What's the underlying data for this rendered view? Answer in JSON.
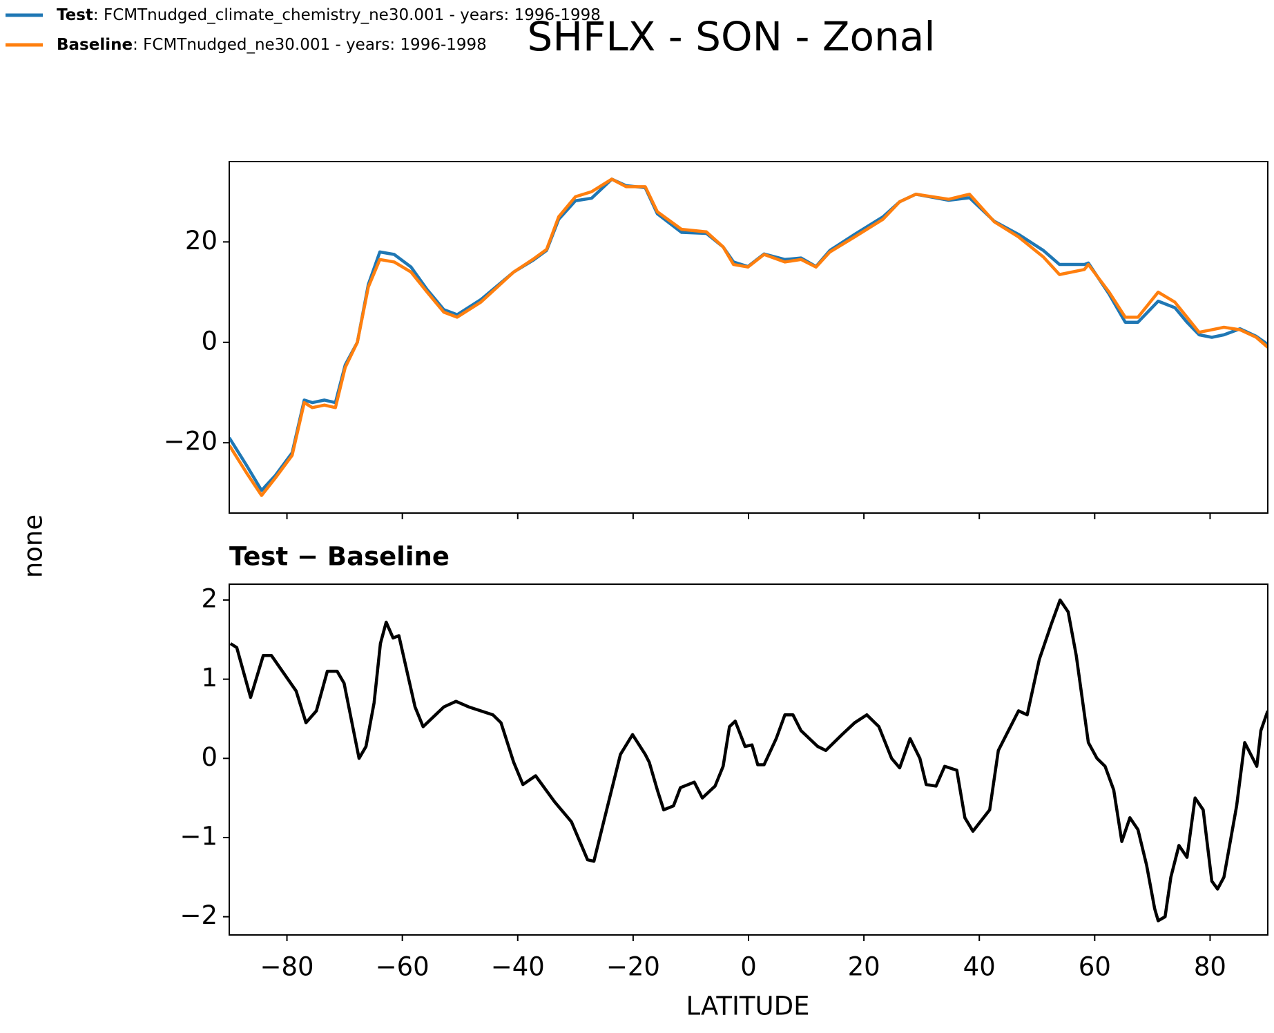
{
  "chart_data": [
    {
      "type": "line",
      "title": "SHFLX - SON - Zonal",
      "ylabel": "none",
      "x": [
        -90,
        -87,
        -84.4,
        -82,
        -79.1,
        -77,
        -75.6,
        -73.5,
        -71.6,
        -69.9,
        -67.8,
        -65.9,
        -63.9,
        -61.4,
        -58.5,
        -55.7,
        -52.8,
        -50.5,
        -46.4,
        -40.7,
        -37.4,
        -35,
        -32.9,
        -30,
        -27.2,
        -23.7,
        -21.2,
        -17.9,
        -15.8,
        -11.6,
        -7.3,
        -4.4,
        -2.6,
        -0.1,
        2.7,
        6.3,
        9.1,
        11.7,
        14.1,
        18.4,
        23.3,
        26.2,
        29,
        34.7,
        38.3,
        42.6,
        46.8,
        51.1,
        53.9,
        58.2,
        58.9,
        62.5,
        65.3,
        67.5,
        71,
        73.9,
        76,
        78.1,
        80.3,
        82.4,
        85.2,
        88,
        90
      ],
      "series": [
        {
          "name": "Test",
          "description": ": FCMTnudged_climate_chemistry_ne30.001 - years: 1996-1998",
          "color": "#1f77b4",
          "values": [
            -19,
            -24.5,
            -29.5,
            -26.5,
            -22,
            -11.5,
            -12,
            -11.5,
            -12,
            -4.5,
            0,
            11.5,
            18,
            17.5,
            15,
            10.5,
            6.5,
            5.5,
            8.5,
            14,
            16.3,
            18.3,
            24.5,
            28.2,
            28.7,
            32.5,
            31.2,
            30.8,
            25.6,
            21.9,
            21.7,
            19,
            16,
            15.1,
            17.6,
            16.5,
            16.8,
            15.1,
            18.3,
            21.5,
            25,
            28,
            29.5,
            28.3,
            28.8,
            24.1,
            21.5,
            18.3,
            15.5,
            15.5,
            15.8,
            9.6,
            4,
            4,
            8.2,
            6.9,
            4,
            1.5,
            1,
            1.5,
            2.7,
            1.2,
            -0.4
          ]
        },
        {
          "name": "Baseline",
          "description": ": FCMTnudged_ne30.001 - years: 1996-1998",
          "color": "#ff7f0e",
          "values": [
            -20.5,
            -26,
            -30.5,
            -27,
            -22.5,
            -12,
            -13,
            -12.5,
            -13,
            -5,
            0,
            11,
            16.5,
            16,
            14,
            10,
            6,
            5,
            8,
            14,
            16.5,
            18.5,
            25,
            29,
            30,
            32.5,
            31,
            31,
            26,
            22.5,
            22,
            19,
            15.5,
            15,
            17.5,
            16,
            16.5,
            15,
            18,
            21,
            24.5,
            28,
            29.5,
            28.5,
            29.5,
            24,
            21,
            17,
            13.5,
            14.5,
            15.5,
            10,
            5,
            5,
            10,
            8,
            5,
            2,
            2.5,
            3,
            2.5,
            1,
            -1
          ]
        }
      ],
      "xlim": [
        -90,
        90
      ],
      "xticks": [
        -80,
        -60,
        -40,
        -20,
        0,
        20,
        40,
        60,
        80
      ],
      "ylim": [
        -34,
        36
      ],
      "yticks": [
        {
          "value": -20,
          "label": "−20"
        },
        0,
        20
      ]
    },
    {
      "type": "line",
      "title": "Test − Baseline",
      "xlabel": "LATITUDE",
      "x": [
        -89.8,
        -88.7,
        -86.3,
        -84.1,
        -82.7,
        -78.4,
        -76.7,
        -74.9,
        -73,
        -71.3,
        -70.1,
        -67.5,
        -66.3,
        -64.9,
        -63.8,
        -62.8,
        -61.6,
        -60.6,
        -57.8,
        -56.4,
        -52.8,
        -50.7,
        -48.5,
        -46.4,
        -44.3,
        -42.9,
        -40.7,
        -39.1,
        -36.9,
        -33.6,
        -30.7,
        -27.9,
        -26.8,
        -25.1,
        -22.2,
        -20.1,
        -17.9,
        -17.2,
        -15.8,
        -14.7,
        -13,
        -11.8,
        -9.4,
        -8,
        -5.8,
        -4.4,
        -3.3,
        -2.3,
        -0.6,
        0.6,
        1.6,
        2.7,
        4.8,
        6.3,
        7.7,
        9.1,
        12,
        13.4,
        16.2,
        18.4,
        20.5,
        22.6,
        24.8,
        26.2,
        28,
        29.7,
        30.8,
        32.5,
        34,
        36.1,
        37.5,
        38.9,
        41.8,
        43.3,
        46.8,
        48.3,
        50.4,
        52.5,
        54,
        55.4,
        56.8,
        58.9,
        60.4,
        61.8,
        63.3,
        64.7,
        66.1,
        67.5,
        69,
        70.4,
        71,
        72.2,
        73.2,
        74.6,
        76,
        77.4,
        78.8,
        80.3,
        81.3,
        82.4,
        84.6,
        86,
        88.1,
        88.8,
        90
      ],
      "series": [
        {
          "color": "#000000",
          "values": [
            1.45,
            1.4,
            0.77,
            1.3,
            1.3,
            0.85,
            0.45,
            0.6,
            1.1,
            1.1,
            0.95,
            0,
            0.15,
            0.7,
            1.45,
            1.72,
            1.52,
            1.55,
            0.65,
            0.4,
            0.65,
            0.72,
            0.65,
            0.6,
            0.55,
            0.45,
            -0.05,
            -0.33,
            -0.22,
            -0.55,
            -0.8,
            -1.28,
            -1.3,
            -0.8,
            0.05,
            0.3,
            0.05,
            -0.05,
            -0.4,
            -0.65,
            -0.6,
            -0.37,
            -0.3,
            -0.5,
            -0.35,
            -0.1,
            0.4,
            0.47,
            0.15,
            0.17,
            -0.08,
            -0.08,
            0.25,
            0.55,
            0.55,
            0.35,
            0.15,
            0.1,
            0.3,
            0.45,
            0.55,
            0.4,
            0,
            -0.12,
            0.25,
            0,
            -0.33,
            -0.35,
            -0.1,
            -0.15,
            -0.75,
            -0.92,
            -0.65,
            0.1,
            0.6,
            0.55,
            1.25,
            1.7,
            2,
            1.85,
            1.3,
            0.2,
            0,
            -0.1,
            -0.4,
            -1.05,
            -0.75,
            -0.9,
            -1.35,
            -1.9,
            -2.05,
            -2,
            -1.5,
            -1.1,
            -1.25,
            -0.5,
            -0.65,
            -1.55,
            -1.65,
            -1.5,
            -0.6,
            0.2,
            -0.1,
            0.35,
            0.6
          ]
        }
      ],
      "xlim": [
        -90,
        90
      ],
      "xticks": [
        {
          "value": -80,
          "label": "−80"
        },
        {
          "value": -60,
          "label": "−60"
        },
        {
          "value": -40,
          "label": "−40"
        },
        {
          "value": -20,
          "label": "−20"
        },
        0,
        20,
        40,
        60,
        80
      ],
      "ylim": [
        -2.23,
        2.2
      ],
      "yticks": [
        {
          "value": -2,
          "label": "−2"
        },
        {
          "value": -1,
          "label": "−1"
        },
        0,
        1,
        2
      ]
    }
  ]
}
